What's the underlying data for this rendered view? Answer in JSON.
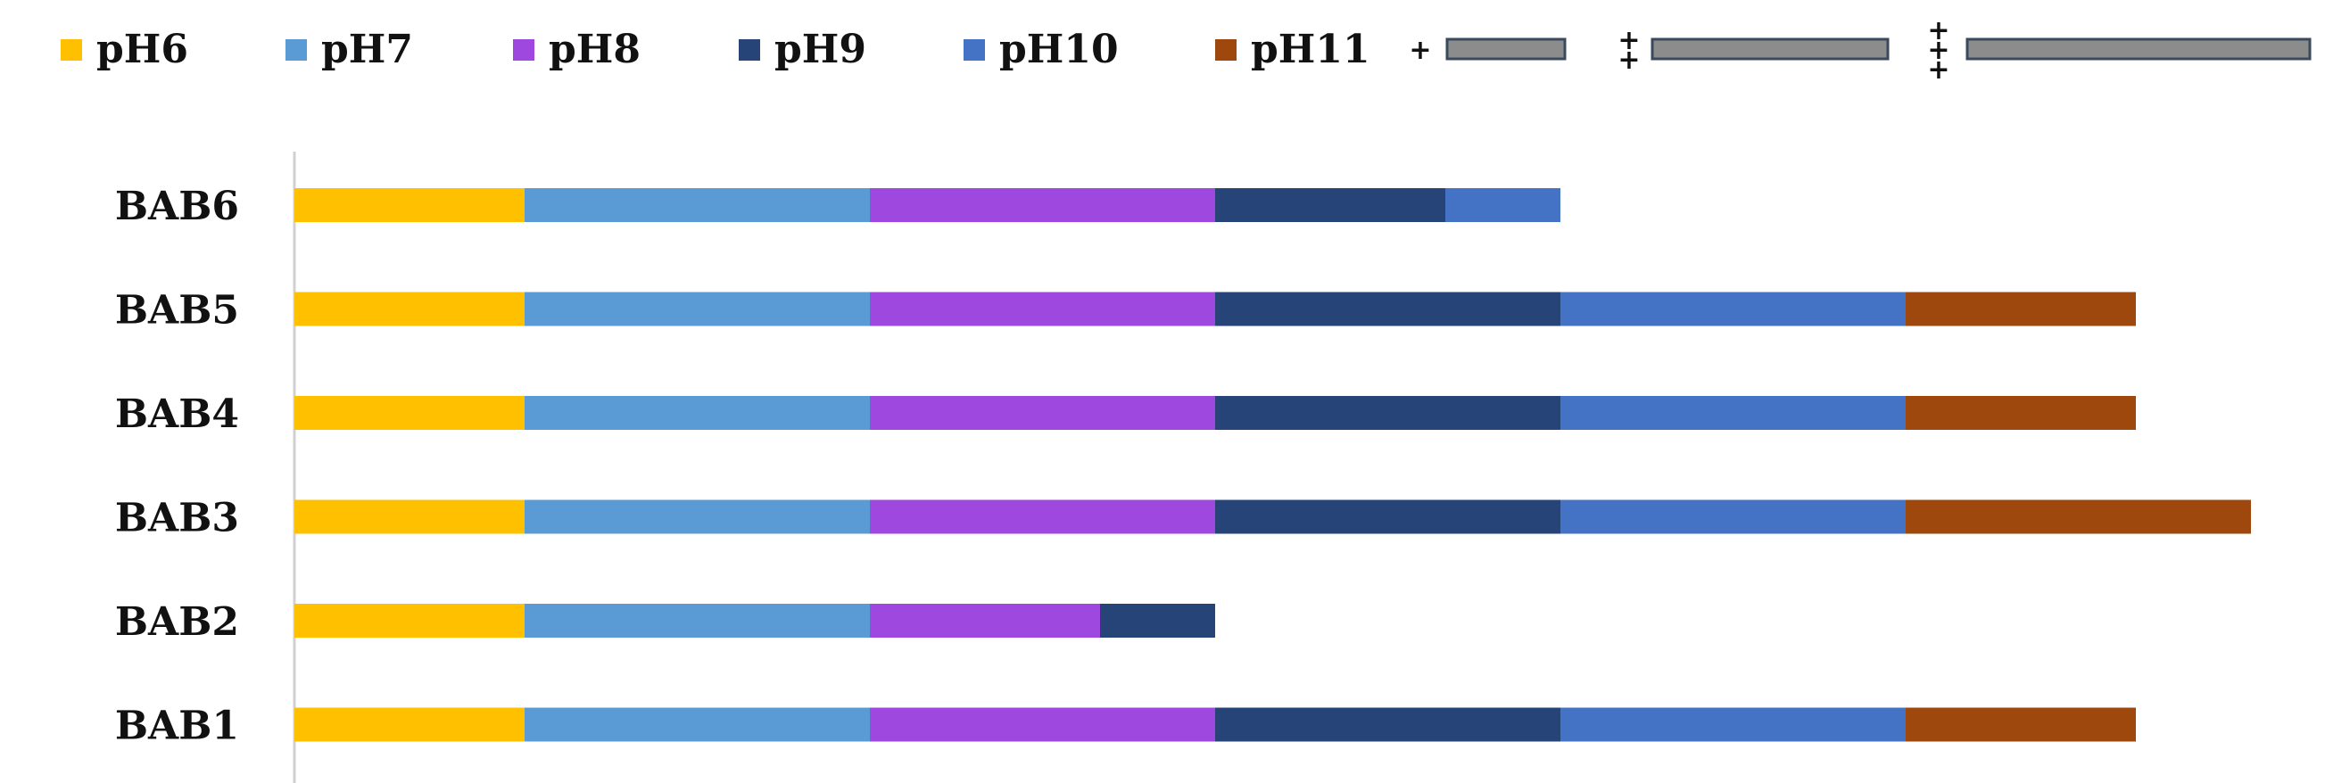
{
  "chart_data": {
    "type": "bar",
    "orientation": "horizontal",
    "stacked": true,
    "categories": [
      "BAB6",
      "BAB5",
      "BAB4",
      "BAB3",
      "BAB2",
      "BAB1"
    ],
    "series": [
      {
        "name": "pH6",
        "color": "#ffc000",
        "values": [
          2,
          2,
          2,
          2,
          2,
          2
        ]
      },
      {
        "name": "pH7",
        "color": "#5b9bd5",
        "values": [
          3,
          3,
          3,
          3,
          3,
          3
        ]
      },
      {
        "name": "pH8",
        "color": "#9e48e0",
        "values": [
          3,
          3,
          3,
          3,
          2,
          3
        ]
      },
      {
        "name": "pH9",
        "color": "#264478",
        "values": [
          2,
          3,
          3,
          3,
          1,
          3
        ]
      },
      {
        "name": "pH10",
        "color": "#4472c4",
        "values": [
          1,
          3,
          3,
          3,
          0,
          3
        ]
      },
      {
        "name": "pH11",
        "color": "#9e480e",
        "values": [
          0,
          2,
          2,
          3,
          0,
          2
        ]
      }
    ],
    "xlim": [
      0,
      17.5
    ],
    "grid": false,
    "legend_position": "top",
    "significance_keys": [
      {
        "symbol": "+",
        "marks": 1,
        "color": "#8c8c8c",
        "bar_units": 1
      },
      {
        "symbol": "++",
        "marks": 2,
        "color": "#8c8c8c",
        "bar_units": 2
      },
      {
        "symbol": "+++",
        "marks": 3,
        "color": "#8c8c8c",
        "bar_units": 3
      }
    ]
  }
}
